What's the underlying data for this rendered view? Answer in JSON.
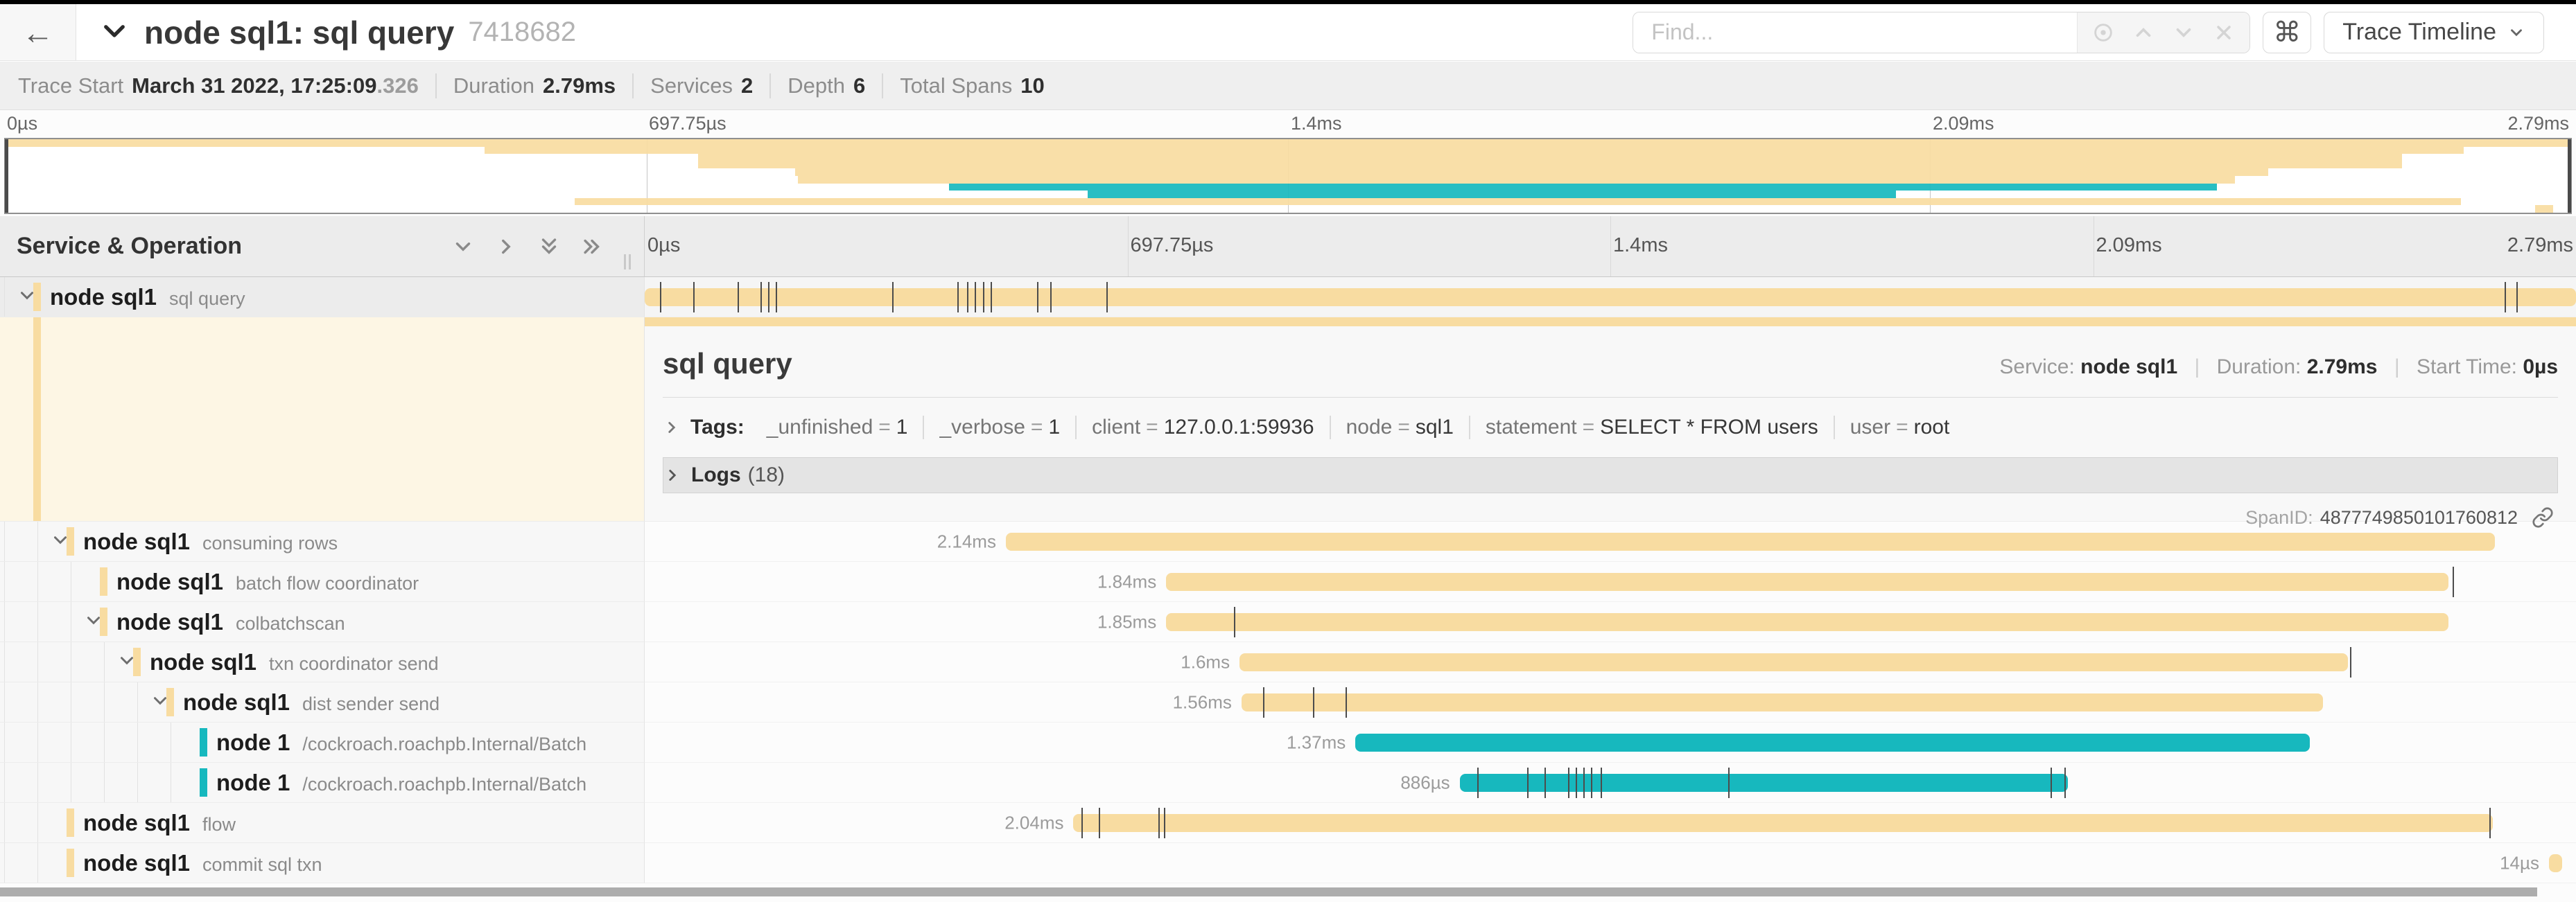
{
  "colors": {
    "amber": "#F8DCA1",
    "teal": "#17B8BE"
  },
  "topbar": {
    "back_icon": "←",
    "title": "node sql1: sql query",
    "trace_id": "7418682",
    "find_placeholder": "Find...",
    "command_icon": "⌘",
    "view_button": "Trace Timeline"
  },
  "trace_info": {
    "items": [
      {
        "label": "Trace Start",
        "value": "March 31 2022, 17:25:09",
        "muted": ".326"
      },
      {
        "label": "Duration",
        "value": "2.79ms",
        "muted": ""
      },
      {
        "label": "Services",
        "value": "2",
        "muted": ""
      },
      {
        "label": "Depth",
        "value": "6",
        "muted": ""
      },
      {
        "label": "Total Spans",
        "value": "10",
        "muted": ""
      }
    ]
  },
  "ruler": {
    "ticks": [
      {
        "label": "0µs",
        "pct": 0
      },
      {
        "label": "697.75µs",
        "pct": 25
      },
      {
        "label": "1.4ms",
        "pct": 50
      },
      {
        "label": "2.09ms",
        "pct": 75
      },
      {
        "label": "2.79ms",
        "pct": 100
      }
    ]
  },
  "tree_header": {
    "title": "Service & Operation"
  },
  "detail": {
    "title": "sql query",
    "service_label": "Service:",
    "service": "node sql1",
    "duration_label": "Duration:",
    "duration": "2.79ms",
    "start_label": "Start Time:",
    "start_time": "0µs",
    "tags_label": "Tags:",
    "tags": [
      {
        "key": "_unfinished",
        "value": "1"
      },
      {
        "key": "_verbose",
        "value": "1"
      },
      {
        "key": "client",
        "value": "127.0.0.1:59936"
      },
      {
        "key": "node",
        "value": "sql1"
      },
      {
        "key": "statement",
        "value": "SELECT * FROM users"
      },
      {
        "key": "user",
        "value": "root"
      }
    ],
    "logs_label": "Logs",
    "logs_count": "(18)",
    "span_id_label": "SpanID:",
    "span_id": "4877749850101760812"
  },
  "spans": [
    {
      "service": "node sql1",
      "operation": "sql query",
      "color": "amber",
      "depth": 0,
      "expandable": true,
      "duration": "",
      "start_pct": 0,
      "end_pct": 100,
      "ticks": [
        0.8,
        2.5,
        4.8,
        6.0,
        6.4,
        6.8,
        12.8,
        16.2,
        16.7,
        17.1,
        17.5,
        17.9,
        20.3,
        21.0,
        23.9,
        96.3,
        96.9
      ]
    },
    {
      "service": "node sql1",
      "operation": "consuming rows",
      "color": "amber",
      "depth": 1,
      "expandable": true,
      "duration": "2.14ms",
      "start_pct": 18.7,
      "end_pct": 95.8,
      "ticks": []
    },
    {
      "service": "node sql1",
      "operation": "batch flow coordinator",
      "color": "amber",
      "depth": 2,
      "expandable": false,
      "duration": "1.84ms",
      "start_pct": 27.0,
      "end_pct": 93.4,
      "ticks": [
        93.6
      ]
    },
    {
      "service": "node sql1",
      "operation": "colbatchscan",
      "color": "amber",
      "depth": 2,
      "expandable": true,
      "duration": "1.85ms",
      "start_pct": 27.0,
      "end_pct": 93.4,
      "ticks": [
        30.5
      ]
    },
    {
      "service": "node sql1",
      "operation": "txn coordinator send",
      "color": "amber",
      "depth": 3,
      "expandable": true,
      "duration": "1.6ms",
      "start_pct": 30.8,
      "end_pct": 88.2,
      "ticks": [
        88.3
      ]
    },
    {
      "service": "node sql1",
      "operation": "dist sender send",
      "color": "amber",
      "depth": 4,
      "expandable": true,
      "duration": "1.56ms",
      "start_pct": 30.9,
      "end_pct": 86.9,
      "ticks": [
        32.0,
        34.6,
        36.3
      ]
    },
    {
      "service": "node 1",
      "operation": "/cockroach.roachpb.Internal/Batch",
      "color": "teal",
      "depth": 5,
      "expandable": false,
      "duration": "1.37ms",
      "start_pct": 36.8,
      "end_pct": 86.2,
      "ticks": []
    },
    {
      "service": "node 1",
      "operation": "/cockroach.roachpb.Internal/Batch",
      "color": "teal",
      "depth": 5,
      "expandable": false,
      "duration": "886µs",
      "start_pct": 42.2,
      "end_pct": 73.7,
      "ticks": [
        43.1,
        45.7,
        46.6,
        47.8,
        48.2,
        48.6,
        49.0,
        49.5,
        56.1,
        72.8,
        73.5
      ]
    },
    {
      "service": "node sql1",
      "operation": "flow",
      "color": "amber",
      "depth": 1,
      "expandable": false,
      "duration": "2.04ms",
      "start_pct": 22.2,
      "end_pct": 95.7,
      "ticks": [
        22.6,
        23.5,
        26.6,
        26.9,
        95.5
      ]
    },
    {
      "service": "node sql1",
      "operation": "commit sql txn",
      "color": "amber",
      "depth": 1,
      "expandable": false,
      "duration": "14µs",
      "start_pct": 98.6,
      "end_pct": 99.3,
      "ticks": []
    }
  ]
}
